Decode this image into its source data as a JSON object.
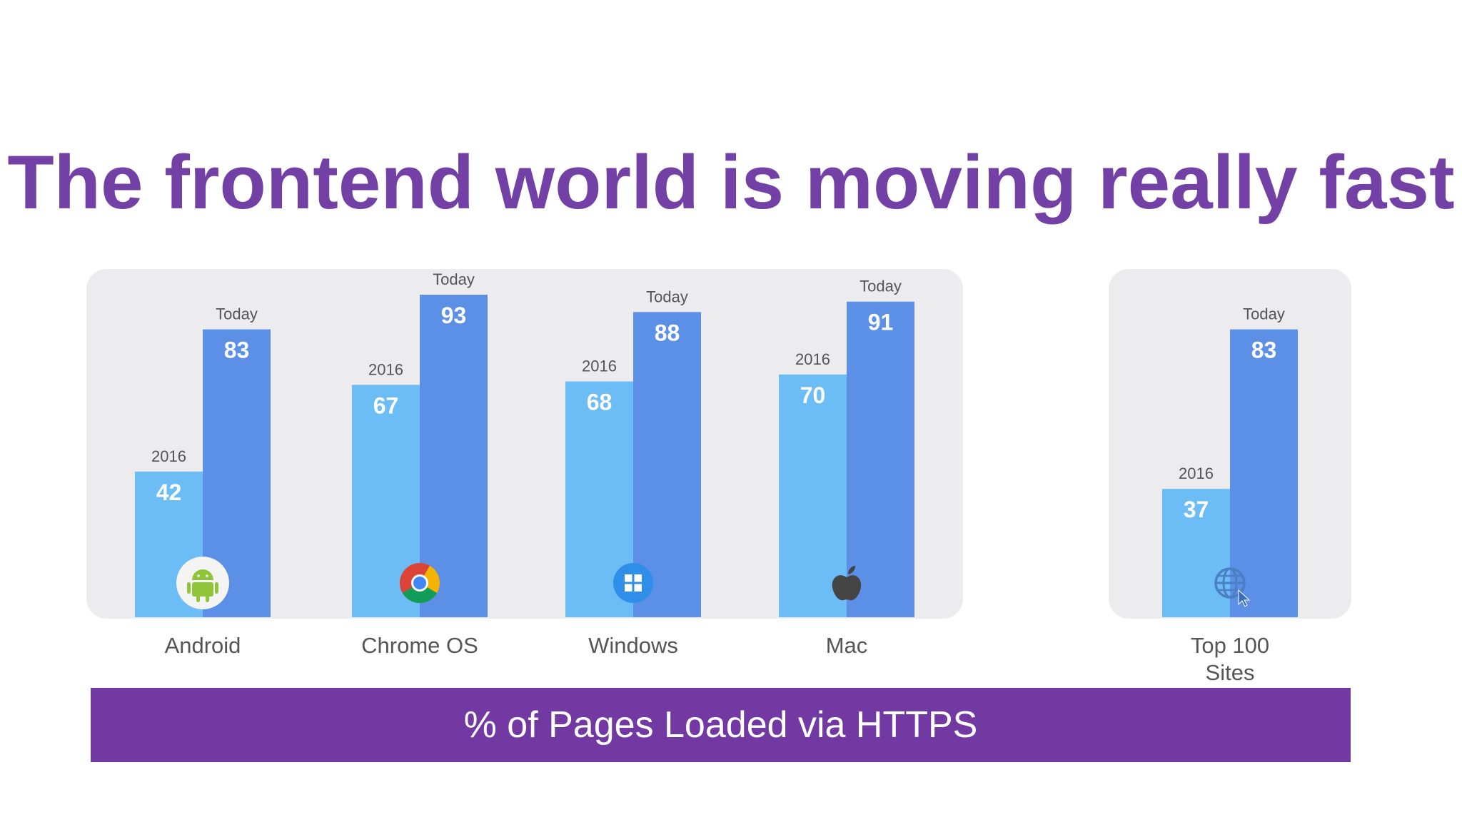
{
  "title": {
    "prefix": "The frontend world is moving ",
    "emphasis": "really",
    "suffix": " fast"
  },
  "colors": {
    "title": "#7340a5",
    "bar_2016": "#6cbcf6",
    "bar_today": "#5c8fe6",
    "panel": "#ececef",
    "band": "#7339a3"
  },
  "chart_data": {
    "type": "bar",
    "categories": [
      "Android",
      "Chrome OS",
      "Windows",
      "Mac",
      "Top 100 Sites"
    ],
    "category_display": [
      [
        "Android"
      ],
      [
        "Chrome OS"
      ],
      [
        "Windows"
      ],
      [
        "Mac"
      ],
      [
        "Top 100",
        "Sites"
      ]
    ],
    "series": [
      {
        "name": "2016",
        "values": [
          42,
          67,
          68,
          70,
          37
        ]
      },
      {
        "name": "Today",
        "values": [
          83,
          93,
          88,
          91,
          83
        ]
      }
    ],
    "icons": [
      "android-icon",
      "chrome-icon",
      "windows-icon",
      "apple-icon",
      "globe-icon"
    ],
    "ylim": [
      0,
      100
    ],
    "caption": "% of Pages Loaded via HTTPS",
    "grid": false,
    "legend": "none"
  }
}
